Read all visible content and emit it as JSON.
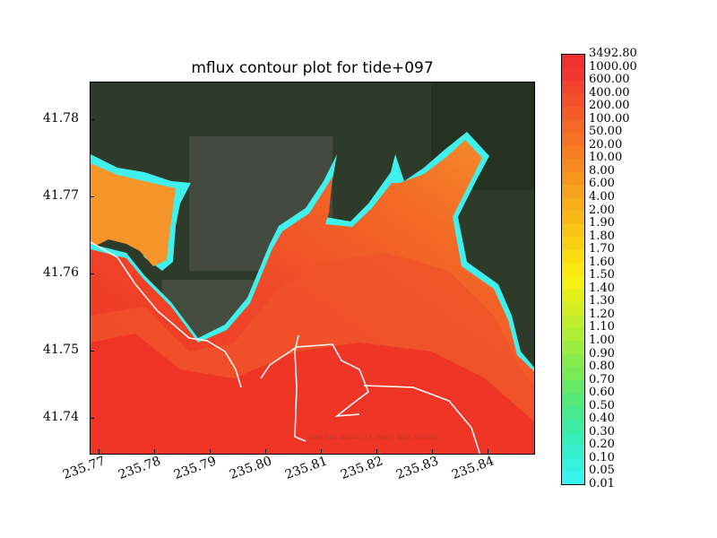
{
  "title": "mflux contour plot for tide+097",
  "map": {
    "y_ticks": [
      "41.78",
      "41.77",
      "41.76",
      "41.75",
      "41.74"
    ],
    "x_ticks": [
      "235.77",
      "235.78",
      "235.79",
      "235.80",
      "235.81",
      "235.82",
      "235.83",
      "235.84"
    ],
    "attribution": "Data SIO, NOAA, U.S. Navy, NGA, GEBCO",
    "colors": {
      "land": "#2e3a28",
      "deep_flux": "#ef3a24",
      "mid_flux": "#f26a22",
      "shallow_flux": "#f59a2a",
      "edge_flux": "#39f0ee",
      "coastline": "#ffffff"
    }
  },
  "colorbar": {
    "labels": [
      "3492.80",
      "1000.00",
      "600.00",
      "400.00",
      "200.00",
      "100.00",
      "50.00",
      "20.00",
      "10.00",
      "8.00",
      "6.00",
      "4.00",
      "2.00",
      "1.90",
      "1.80",
      "1.70",
      "1.60",
      "1.50",
      "1.40",
      "1.30",
      "1.20",
      "1.10",
      "1.00",
      "0.90",
      "0.80",
      "0.70",
      "0.60",
      "0.50",
      "0.40",
      "0.30",
      "0.20",
      "0.10",
      "0.05",
      "0.01"
    ],
    "colors": [
      "#f03030",
      "#f1372f",
      "#f2432d",
      "#f24f2b",
      "#f35b29",
      "#f46726",
      "#f47324",
      "#f57f22",
      "#f68a20",
      "#f6961e",
      "#f7a21c",
      "#f8ae1a",
      "#f8b918",
      "#f9c516",
      "#f9d014",
      "#fadc12",
      "#fbe810",
      "#f4f012",
      "#e4f01a",
      "#d2ef24",
      "#c0ee2e",
      "#aeed38",
      "#9cec42",
      "#8aeb4c",
      "#78ea58",
      "#66e966",
      "#56e878",
      "#48e98c",
      "#3deba2",
      "#38edb8",
      "#36efcc",
      "#36f1de",
      "#38f4ee"
    ]
  }
}
